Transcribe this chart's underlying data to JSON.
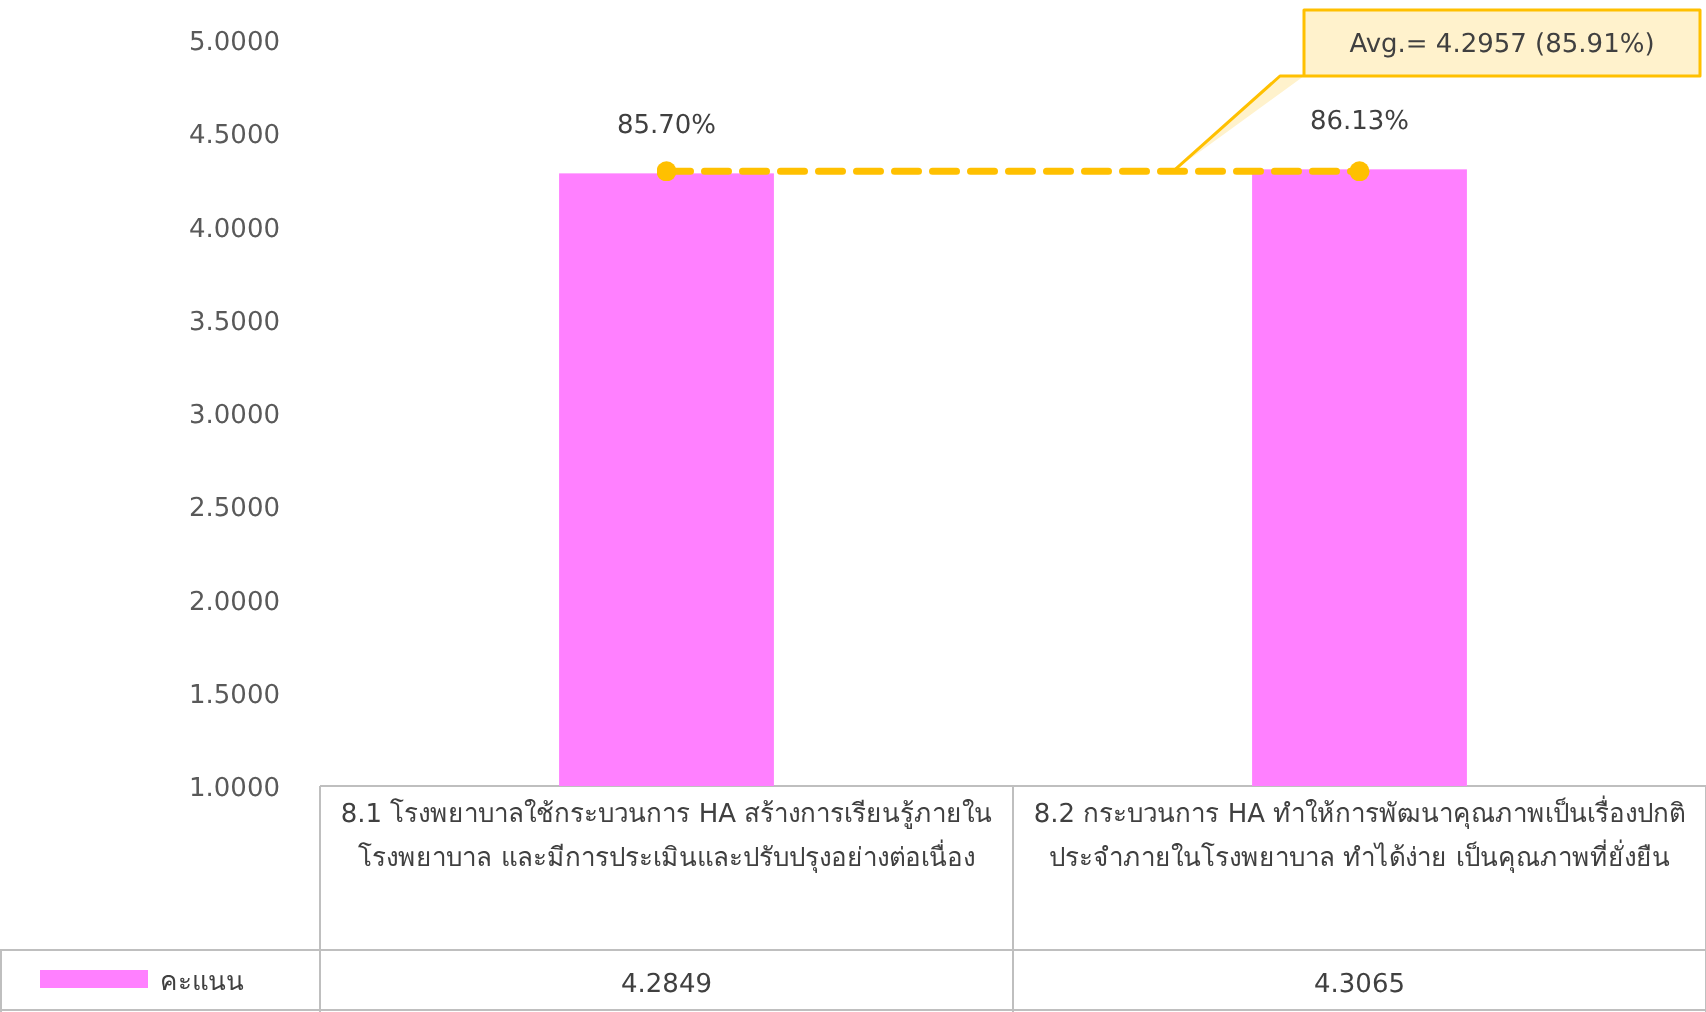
{
  "chart_data": {
    "type": "bar",
    "categories": [
      "8.1 โรงพยาบาลใช้กระบวนการ HA สร้างการเรียนรู้ภายในโรงพยาบาล และมีการประเมินและปรับปรุงอย่างต่อเนื่อง",
      "8.2 กระบวนการ HA ทำให้การพัฒนาคุณภาพเป็นเรื่องปกติประจำภายในโรงพยาบาล ทำได้ง่าย เป็นคุณภาพที่ยั่งยืน"
    ],
    "series": [
      {
        "name": "คะแนน",
        "color": "#ff80ff",
        "values": [
          4.2849,
          4.3065
        ],
        "value_labels": [
          "4.2849",
          "4.3065"
        ]
      }
    ],
    "annotations": [
      {
        "text": "85.70%",
        "x": "8.1 โรงพยาบาลใช้กระบวนการ HA สร้างการเรียนรู้ภายในโรงพยาบาล และมีการประเมินและปรับปรุงอย่างต่อเนื่อง",
        "y": 4.2849
      },
      {
        "text": "86.13%",
        "x": "8.2 กระบวนการ HA ทำให้การพัฒนาคุณภาพเป็นเรื่องปกติประจำภายในโรงพยาบาล ทำได้ง่าย เป็นคุณภาพที่ยั่งยืน",
        "y": 4.3065
      }
    ],
    "ylim": [
      1,
      5
    ],
    "yticks": [
      {
        "value": 1,
        "label": "1.0000"
      },
      {
        "value": 1.5,
        "label": "1.5000"
      },
      {
        "value": 2,
        "label": "2.0000"
      },
      {
        "value": 2.5,
        "label": "2.5000"
      },
      {
        "value": 3,
        "label": "3.0000"
      },
      {
        "value": 3.5,
        "label": "3.5000"
      },
      {
        "value": 4,
        "label": "4.0000"
      },
      {
        "value": 4.5,
        "label": "4.5000"
      },
      {
        "value": 5,
        "label": "5.0000"
      }
    ],
    "ref_lines": [
      {
        "axis": "y",
        "value": 4.2957,
        "label": "Avg.= 4.2957 (85.91%)",
        "color": "#ffc000",
        "line_style": "dashed"
      }
    ],
    "legend": "bottom left",
    "grid": false
  }
}
